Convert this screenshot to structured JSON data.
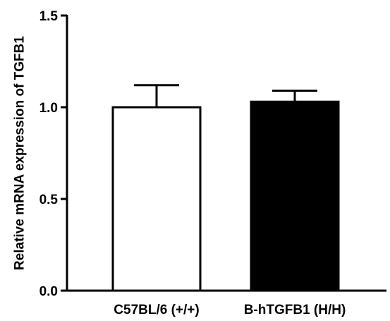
{
  "chart_data": {
    "type": "bar",
    "title": "",
    "xlabel": "",
    "ylabel": "Relative  mRNA expression of TGFB1",
    "ylim": [
      0,
      1.5
    ],
    "yticks": [
      0.0,
      0.5,
      1.0,
      1.5
    ],
    "ytick_labels": [
      "0.0",
      "0.5",
      "1.0",
      "1.5"
    ],
    "categories": [
      "C57BL/6 (+/+)",
      "B-hTGFB1 (H/H)"
    ],
    "values": [
      1.0,
      1.03
    ],
    "error_upper": [
      0.12,
      0.06
    ],
    "bar_fill_colors": [
      "#ffffff",
      "#000000"
    ],
    "bar_stroke_color": "#000000",
    "grid": false,
    "legend": "none"
  }
}
